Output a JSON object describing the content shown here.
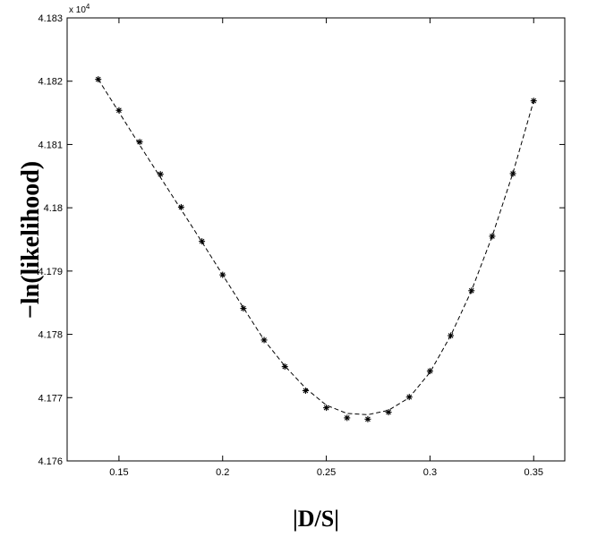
{
  "chart_data": {
    "type": "scatter",
    "xlabel": "|D/S|",
    "ylabel": "−ln(likelihood)",
    "y_exponent_label": "x 10",
    "y_exponent_power": "4",
    "xlim": [
      0.125,
      0.365
    ],
    "ylim": [
      4.176,
      4.183
    ],
    "x_ticks": [
      0.15,
      0.2,
      0.25,
      0.3,
      0.35
    ],
    "x_tick_labels": [
      "0.15",
      "0.2",
      "0.25",
      "0.3",
      "0.35"
    ],
    "y_ticks": [
      4.176,
      4.177,
      4.178,
      4.179,
      4.18,
      4.181,
      4.182,
      4.183
    ],
    "y_tick_labels": [
      "4.176",
      "4.177",
      "4.178",
      "4.179",
      "4.18",
      "4.181",
      "4.182",
      "4.183"
    ],
    "grid": false,
    "legend": "none",
    "series": [
      {
        "marker": "asterisk",
        "color": "#000000",
        "x": [
          0.14,
          0.15,
          0.16,
          0.17,
          0.18,
          0.19,
          0.2,
          0.21,
          0.22,
          0.23,
          0.24,
          0.25,
          0.26,
          0.27,
          0.28,
          0.29,
          0.3,
          0.31,
          0.32,
          0.33,
          0.34,
          0.35
        ],
        "y": [
          4.18203,
          4.18154,
          4.18104,
          4.18053,
          4.18001,
          4.17947,
          4.17894,
          4.17841,
          4.17791,
          4.17749,
          4.17711,
          4.17684,
          4.17668,
          4.17666,
          4.17677,
          4.17701,
          4.17742,
          4.17798,
          4.17869,
          4.17955,
          4.18054,
          4.18169
        ]
      },
      {
        "type": "line",
        "style": "dashed",
        "color": "#000000",
        "x": [
          0.14,
          0.15,
          0.16,
          0.17,
          0.18,
          0.19,
          0.2,
          0.21,
          0.22,
          0.23,
          0.24,
          0.25,
          0.26,
          0.27,
          0.28,
          0.29,
          0.3,
          0.31,
          0.32,
          0.33,
          0.34,
          0.35
        ],
        "y": [
          4.18203,
          4.18151,
          4.18099,
          4.18048,
          4.17997,
          4.17946,
          4.17894,
          4.17842,
          4.17791,
          4.1775,
          4.17715,
          4.17688,
          4.17675,
          4.17673,
          4.1768,
          4.177,
          4.1774,
          4.17798,
          4.17869,
          4.17955,
          4.18055,
          4.18169
        ]
      }
    ]
  }
}
